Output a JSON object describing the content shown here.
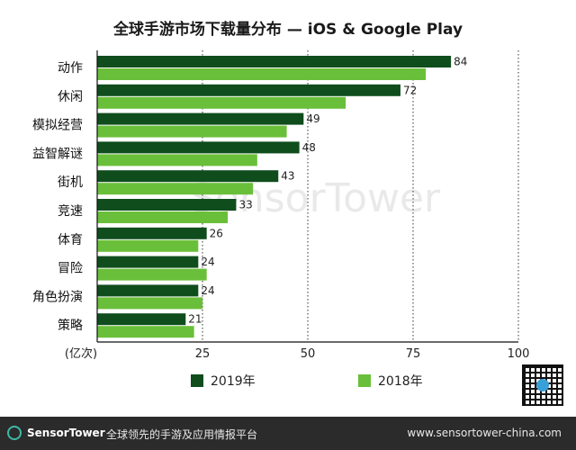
{
  "chart_data": {
    "type": "bar",
    "orientation": "horizontal",
    "title": "全球手游市场下载量分布 — iOS & Google Play",
    "categories": [
      "动作",
      "休闲",
      "模拟经营",
      "益智解谜",
      "街机",
      "竞速",
      "体育",
      "冒险",
      "角色扮演",
      "策略"
    ],
    "series": [
      {
        "name": "2019年",
        "color": "#0f4d1d",
        "values": [
          84,
          72,
          49,
          48,
          43,
          33,
          26,
          24,
          24,
          21
        ],
        "labels": [
          "84",
          "72",
          "49",
          "48",
          "43",
          "33",
          "26",
          "24",
          "24",
          "21"
        ]
      },
      {
        "name": "2018年",
        "color": "#6abf3a",
        "values": [
          78,
          59,
          45,
          38,
          37,
          31,
          24,
          26,
          25,
          23
        ]
      }
    ],
    "xlim": [
      0,
      100
    ],
    "ticks": [
      "25",
      "50",
      "75",
      "100"
    ],
    "tick_values": [
      25,
      50,
      75,
      100
    ],
    "unit_label": "(亿次)",
    "grid": "dotted-vertical",
    "legend_position": "bottom"
  },
  "watermark": "SensorTower",
  "footer": {
    "brand": "SensorTower",
    "tagline": "全球领先的手游及应用情报平台",
    "url": "www.sensortower-china.com"
  }
}
